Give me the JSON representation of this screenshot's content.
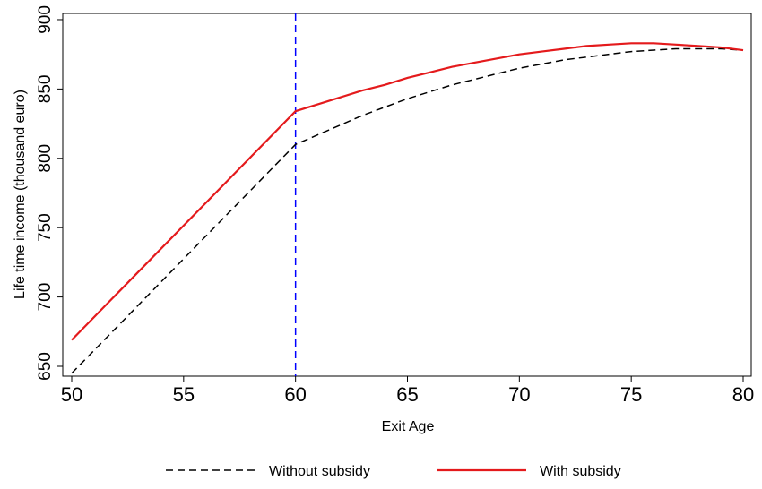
{
  "chart_data": {
    "type": "line",
    "x_label": "Exit Age",
    "y_label": "Life time income (thousand euro)",
    "x": [
      50,
      60,
      61,
      62,
      63,
      64,
      65,
      66,
      67,
      68,
      69,
      70,
      71,
      72,
      73,
      74,
      75,
      76,
      77,
      78,
      79,
      80
    ],
    "series": [
      {
        "name": "Without subsidy",
        "color": "#000000",
        "dash": true,
        "values": [
          645,
          810,
          817,
          824,
          831,
          837,
          843,
          848,
          853,
          857,
          861,
          865,
          868,
          871,
          873,
          875,
          877,
          878,
          879,
          879,
          879,
          878
        ]
      },
      {
        "name": "With subsidy",
        "color": "#e41a1c",
        "dash": false,
        "values": [
          669,
          834,
          839,
          844,
          849,
          853,
          858,
          862,
          866,
          869,
          872,
          875,
          877,
          879,
          881,
          882,
          883,
          883,
          882,
          881,
          880,
          878
        ]
      }
    ],
    "vline": {
      "value": 60,
      "color": "#0000ff"
    },
    "xlim": [
      49.6,
      80.36
    ],
    "xticks": [
      50,
      55,
      60,
      65,
      70,
      75,
      80
    ],
    "ylim": [
      642.9,
      904.5
    ],
    "yticks": [
      650,
      700,
      750,
      800,
      850,
      900
    ],
    "grid": false,
    "legend": "bottom"
  }
}
